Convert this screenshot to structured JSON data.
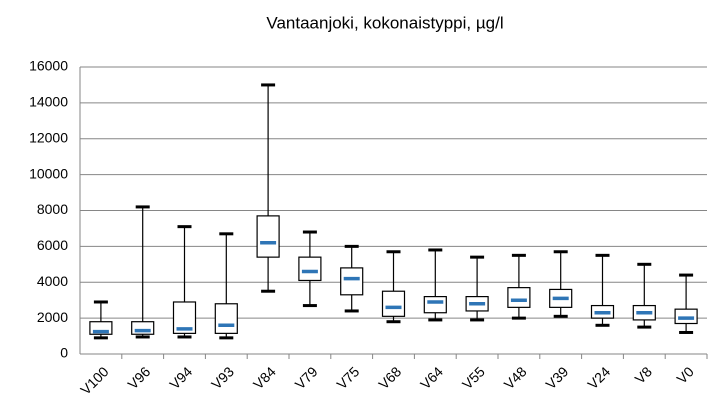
{
  "chart_data": {
    "type": "box",
    "title": "Vantaanjoki, kokonaistyppi, µg/l",
    "categories": [
      "V100",
      "V96",
      "V94",
      "V93",
      "V84",
      "V79",
      "V75",
      "V68",
      "V64",
      "V55",
      "V48",
      "V39",
      "V24",
      "V8",
      "V0"
    ],
    "boxes": [
      {
        "min": 900,
        "q1": 1100,
        "median": 1250,
        "q3": 1800,
        "max": 2900
      },
      {
        "min": 950,
        "q1": 1100,
        "median": 1300,
        "q3": 1800,
        "max": 8200
      },
      {
        "min": 950,
        "q1": 1150,
        "median": 1400,
        "q3": 2900,
        "max": 7100
      },
      {
        "min": 900,
        "q1": 1150,
        "median": 1600,
        "q3": 2800,
        "max": 6700
      },
      {
        "min": 3500,
        "q1": 5400,
        "median": 6200,
        "q3": 7700,
        "max": 15000
      },
      {
        "min": 2700,
        "q1": 4100,
        "median": 4600,
        "q3": 5400,
        "max": 6800
      },
      {
        "min": 2400,
        "q1": 3300,
        "median": 4200,
        "q3": 4800,
        "max": 6000
      },
      {
        "min": 1800,
        "q1": 2100,
        "median": 2600,
        "q3": 3500,
        "max": 5700
      },
      {
        "min": 1900,
        "q1": 2300,
        "median": 2900,
        "q3": 3200,
        "max": 5800
      },
      {
        "min": 1900,
        "q1": 2400,
        "median": 2800,
        "q3": 3200,
        "max": 5400
      },
      {
        "min": 2000,
        "q1": 2600,
        "median": 3000,
        "q3": 3700,
        "max": 5500
      },
      {
        "min": 2100,
        "q1": 2600,
        "median": 3100,
        "q3": 3600,
        "max": 5700
      },
      {
        "min": 1600,
        "q1": 2000,
        "median": 2300,
        "q3": 2700,
        "max": 5500
      },
      {
        "min": 1500,
        "q1": 1900,
        "median": 2300,
        "q3": 2700,
        "max": 5000
      },
      {
        "min": 1200,
        "q1": 1700,
        "median": 2000,
        "q3": 2500,
        "max": 4400
      }
    ],
    "median_color": "#2e75b6",
    "box_color": "#000000",
    "ylim": [
      0,
      16000
    ],
    "yticks": [
      0,
      2000,
      4000,
      6000,
      8000,
      10000,
      12000,
      14000,
      16000
    ],
    "grid": true
  }
}
